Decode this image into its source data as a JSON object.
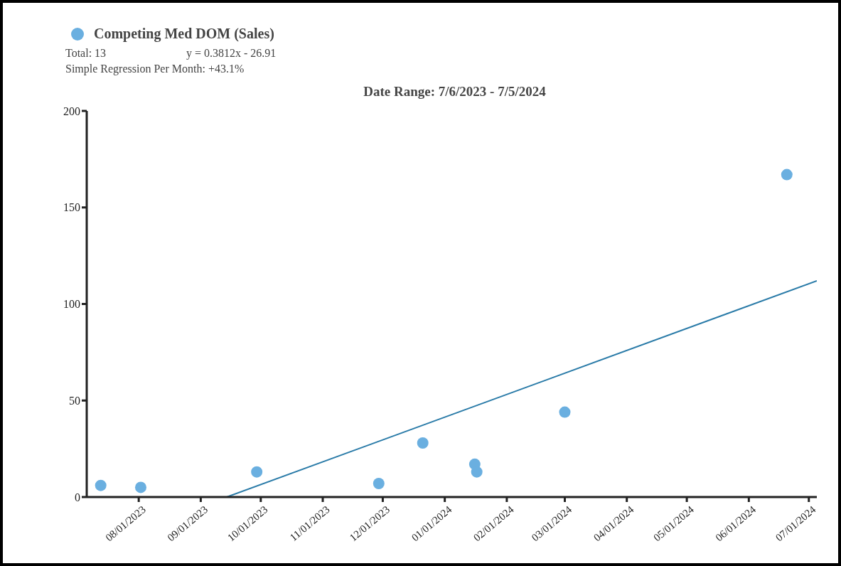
{
  "chart_data": {
    "type": "scatter",
    "title": "Date Range: 7/6/2023 - 7/5/2024",
    "annotations": [
      "Total: 13",
      "y = 0.3812x - 26.91",
      "Simple Regression Per Month: +43.1%"
    ],
    "x": [
      "2023-07-13",
      "2023-08-02",
      "2023-09-29",
      "2023-11-29",
      "2023-12-21",
      "2024-01-16",
      "2024-01-17",
      "2024-03-01",
      "2024-06-20"
    ],
    "series": [
      {
        "name": "Competing Med DOM (Sales)",
        "color": "#6aafe0",
        "marker": "circle",
        "values": [
          6,
          5,
          13,
          7,
          28,
          17,
          13,
          44,
          167
        ]
      },
      {
        "type": "line",
        "color": "#2a7ba8",
        "marker": "none",
        "x": [
          "2023-09-14",
          "2024-07-05"
        ],
        "values": [
          0,
          112
        ]
      }
    ],
    "xlim": [
      "2023-07-06",
      "2024-07-05"
    ],
    "xticks": [
      {
        "value": "2023-08-01",
        "label": "08/01/2023"
      },
      {
        "value": "2023-09-01",
        "label": "09/01/2023"
      },
      {
        "value": "2023-10-01",
        "label": "10/01/2023"
      },
      {
        "value": "2023-11-01",
        "label": "11/01/2023"
      },
      {
        "value": "2023-12-01",
        "label": "12/01/2023"
      },
      {
        "value": "2024-01-01",
        "label": "01/01/2024"
      },
      {
        "value": "2024-02-01",
        "label": "02/01/2024"
      },
      {
        "value": "2024-03-01",
        "label": "03/01/2024"
      },
      {
        "value": "2024-04-01",
        "label": "04/01/2024"
      },
      {
        "value": "2024-05-01",
        "label": "05/01/2024"
      },
      {
        "value": "2024-06-01",
        "label": "06/01/2024"
      },
      {
        "value": "2024-07-01",
        "label": "07/01/2024"
      }
    ],
    "ylim": [
      0,
      200
    ],
    "yticks": [
      0,
      50,
      100,
      150,
      200
    ],
    "grid": false,
    "legend": "top left",
    "line_style": "solid"
  }
}
